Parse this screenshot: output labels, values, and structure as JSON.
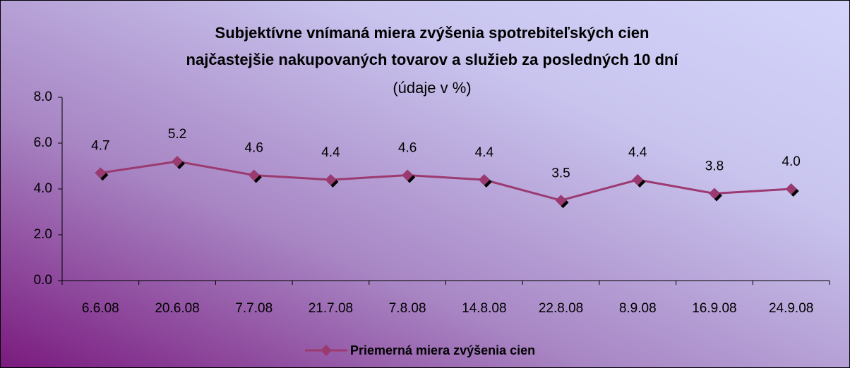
{
  "chart_data": {
    "type": "line",
    "title": [
      "Subjektívne vnímaná miera zvýšenia spotrebiteľských cien",
      "najčastejšie nakupovaných tovarov a služieb za posledných 10 dní"
    ],
    "subtitle": "(údaje v %)",
    "categories": [
      "6.6.08",
      "20.6.08",
      "7.7.08",
      "21.7.08",
      "7.8.08",
      "14.8.08",
      "22.8.08",
      "8.9.08",
      "16.9.08",
      "24.9.08"
    ],
    "series": [
      {
        "name": "Priemerná miera zvýšenia cien",
        "color": "#9b3a70",
        "values": [
          4.7,
          5.2,
          4.6,
          4.4,
          4.6,
          4.4,
          3.5,
          4.4,
          3.8,
          4.0
        ],
        "value_labels": [
          "4.7",
          "5.2",
          "4.6",
          "4.4",
          "4.6",
          "4.4",
          "3.5",
          "4.4",
          "3.8",
          "4.0"
        ]
      }
    ],
    "ylim": [
      0,
      8
    ],
    "yticks": [
      {
        "value": 0,
        "label": "0.0"
      },
      {
        "value": 2,
        "label": "2.0"
      },
      {
        "value": 4,
        "label": "4.0"
      },
      {
        "value": 6,
        "label": "6.0"
      },
      {
        "value": 8,
        "label": "8.0"
      }
    ],
    "grid": false,
    "legend": "bottom"
  }
}
